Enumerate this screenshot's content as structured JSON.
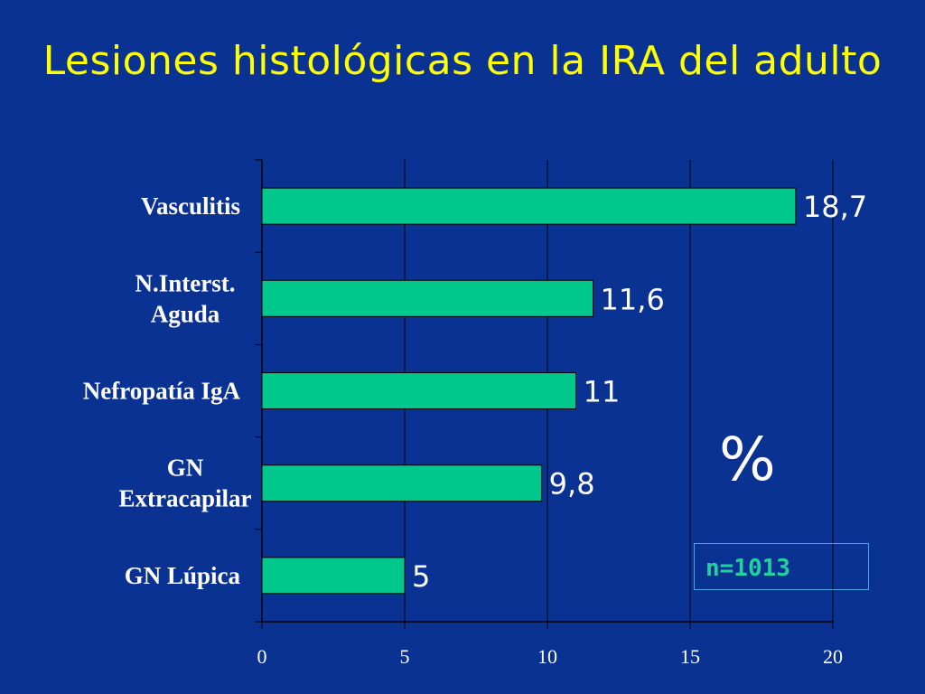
{
  "slide": {
    "title": "Lesiones histológicas en la IRA del adulto",
    "unit": "%",
    "sample": "n=1013"
  },
  "colors": {
    "background": "#0a3293",
    "bar": "#00c88c",
    "title": "#ffff00",
    "sample_text": "#22d0a0"
  },
  "chart_data": {
    "type": "bar",
    "orientation": "horizontal",
    "title": "",
    "xlabel": "",
    "ylabel": "",
    "categories": [
      [
        "Vasculitis"
      ],
      [
        "N.Interst.",
        "Aguda"
      ],
      [
        "Nefropatía IgA"
      ],
      [
        "GN",
        "Extracapilar"
      ],
      [
        "GN Lúpica"
      ]
    ],
    "values": [
      18.7,
      11.6,
      11,
      9.8,
      5
    ],
    "value_labels": [
      "18,7",
      "11,6",
      "11",
      "9,8",
      "5"
    ],
    "xlim": [
      0,
      20
    ],
    "xticks": [
      0,
      5,
      10,
      15,
      20
    ],
    "grid": "vertical"
  }
}
